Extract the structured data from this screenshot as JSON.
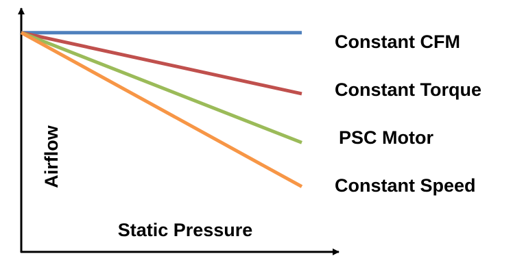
{
  "chart_data": {
    "type": "line",
    "title": "",
    "xlabel": "Static Pressure",
    "ylabel": "Airflow",
    "x": [
      0,
      1
    ],
    "ylim": [
      0,
      1
    ],
    "xlim": [
      0,
      1
    ],
    "grid": false,
    "legend": "right",
    "series": [
      {
        "name": "Constant CFM",
        "values": [
          0.9,
          0.9
        ],
        "color": "#4f81bd"
      },
      {
        "name": "Constant Torque",
        "values": [
          0.9,
          0.65
        ],
        "color": "#c0504d"
      },
      {
        "name": "PSC Motor",
        "values": [
          0.9,
          0.45
        ],
        "color": "#9bbb59"
      },
      {
        "name": "Constant Speed",
        "values": [
          0.9,
          0.27
        ],
        "color": "#f79646"
      }
    ]
  }
}
